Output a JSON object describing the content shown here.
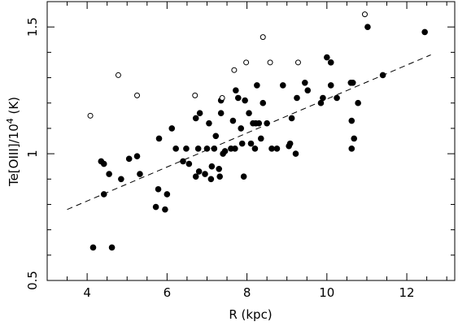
{
  "chart_data": {
    "type": "scatter",
    "xlabel": "R (kpc)",
    "ylabel_main": "Te[OIII]/10",
    "ylabel_exp": "4",
    "ylabel_unit": " (K)",
    "xlim": [
      3.0,
      13.2
    ],
    "ylim": [
      0.5,
      1.6
    ],
    "xticks": [
      4,
      6,
      8,
      10,
      12
    ],
    "yticks": [
      0.5,
      1,
      1.5
    ],
    "xtick_labels": [
      "4",
      "6",
      "8",
      "10",
      "12"
    ],
    "ytick_labels": [
      "0.5",
      "1",
      "1.5"
    ],
    "grid": false,
    "legend": "none",
    "fit_line": {
      "style": "dashed",
      "x": [
        3.5,
        12.6
      ],
      "y": [
        0.78,
        1.39
      ]
    },
    "series": [
      {
        "marker": "filled-circle",
        "points": [
          [
            4.15,
            0.63
          ],
          [
            4.62,
            0.63
          ],
          [
            4.35,
            0.97
          ],
          [
            4.42,
            0.96
          ],
          [
            4.42,
            0.84
          ],
          [
            4.55,
            0.92
          ],
          [
            4.85,
            0.9
          ],
          [
            5.05,
            0.98
          ],
          [
            5.25,
            0.99
          ],
          [
            5.32,
            0.92
          ],
          [
            5.72,
            0.79
          ],
          [
            5.78,
            0.86
          ],
          [
            5.8,
            1.06
          ],
          [
            5.95,
            0.78
          ],
          [
            6.0,
            0.84
          ],
          [
            6.12,
            1.1
          ],
          [
            6.22,
            1.02
          ],
          [
            6.4,
            0.97
          ],
          [
            6.48,
            1.02
          ],
          [
            6.55,
            0.96
          ],
          [
            6.72,
            0.91
          ],
          [
            6.72,
            1.14
          ],
          [
            6.78,
            1.02
          ],
          [
            6.8,
            0.93
          ],
          [
            6.82,
            1.16
          ],
          [
            6.95,
            0.92
          ],
          [
            7.0,
            1.02
          ],
          [
            7.05,
            1.12
          ],
          [
            7.1,
            0.9
          ],
          [
            7.12,
            0.95
          ],
          [
            7.18,
            1.02
          ],
          [
            7.22,
            1.07
          ],
          [
            7.3,
            0.94
          ],
          [
            7.32,
            0.91
          ],
          [
            7.35,
            1.16
          ],
          [
            7.35,
            1.21
          ],
          [
            7.4,
            1.0
          ],
          [
            7.45,
            1.01
          ],
          [
            7.6,
            1.02
          ],
          [
            7.65,
            1.13
          ],
          [
            7.7,
            1.02
          ],
          [
            7.72,
            1.25
          ],
          [
            7.78,
            1.22
          ],
          [
            7.85,
            1.1
          ],
          [
            7.88,
            1.04
          ],
          [
            7.92,
            0.91
          ],
          [
            7.95,
            1.21
          ],
          [
            8.05,
            1.16
          ],
          [
            8.1,
            1.04
          ],
          [
            8.15,
            1.12
          ],
          [
            8.2,
            1.02
          ],
          [
            8.22,
            1.12
          ],
          [
            8.25,
            1.27
          ],
          [
            8.3,
            1.12
          ],
          [
            8.35,
            1.06
          ],
          [
            8.4,
            1.2
          ],
          [
            8.5,
            1.12
          ],
          [
            8.62,
            1.02
          ],
          [
            8.75,
            1.02
          ],
          [
            8.9,
            1.27
          ],
          [
            9.05,
            1.03
          ],
          [
            9.08,
            1.04
          ],
          [
            9.12,
            1.14
          ],
          [
            9.22,
            1.0
          ],
          [
            9.25,
            1.22
          ],
          [
            9.45,
            1.28
          ],
          [
            9.52,
            1.25
          ],
          [
            9.85,
            1.2
          ],
          [
            9.9,
            1.22
          ],
          [
            10.0,
            1.38
          ],
          [
            10.1,
            1.36
          ],
          [
            10.1,
            1.27
          ],
          [
            10.25,
            1.22
          ],
          [
            10.6,
            1.28
          ],
          [
            10.62,
            1.02
          ],
          [
            10.62,
            1.13
          ],
          [
            10.65,
            1.28
          ],
          [
            10.68,
            1.06
          ],
          [
            10.78,
            1.2
          ],
          [
            11.02,
            1.5
          ],
          [
            11.4,
            1.31
          ],
          [
            12.45,
            1.48
          ]
        ]
      },
      {
        "marker": "open-circle",
        "points": [
          [
            4.08,
            1.15
          ],
          [
            4.78,
            1.31
          ],
          [
            5.25,
            1.23
          ],
          [
            6.7,
            1.23
          ],
          [
            7.38,
            1.22
          ],
          [
            7.68,
            1.33
          ],
          [
            7.98,
            1.36
          ],
          [
            8.4,
            1.46
          ],
          [
            8.58,
            1.36
          ],
          [
            9.28,
            1.36
          ],
          [
            10.95,
            1.55
          ]
        ]
      }
    ]
  }
}
